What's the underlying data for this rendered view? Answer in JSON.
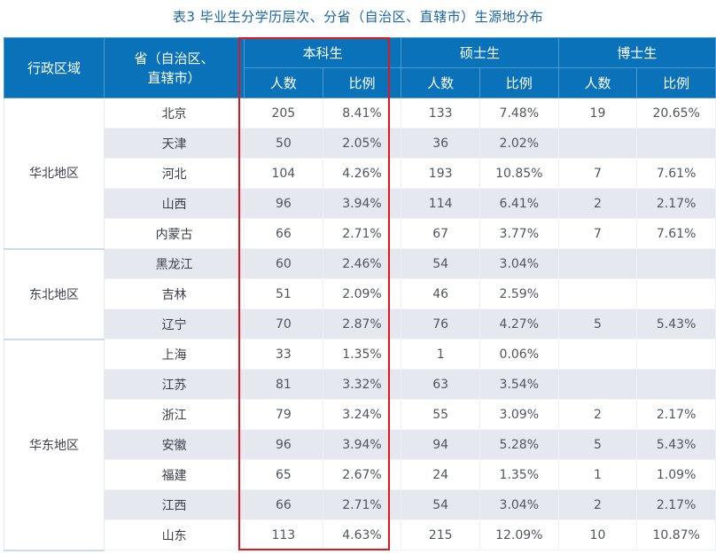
{
  "title": "表3  毕业生分学历层次、分省（自治区、直辖市）生源地分布",
  "header": {
    "region": "行政区域",
    "province": "省（自治区、直辖市）",
    "groups": [
      {
        "label": "本科生",
        "count": "人数",
        "ratio": "比例"
      },
      {
        "label": "硕士生",
        "count": "人数",
        "ratio": "比例"
      },
      {
        "label": "博士生",
        "count": "人数",
        "ratio": "比例"
      }
    ]
  },
  "colors": {
    "header_bg": "#0a72b8",
    "title": "#1a64a8",
    "alt_row": "#e6e8f0",
    "highlight": "#e3161b"
  },
  "regions": [
    {
      "name": "华北地区",
      "rows": [
        {
          "province": "北京",
          "bk_n": "205",
          "bk_p": "8.41%",
          "ss_n": "133",
          "ss_p": "7.48%",
          "bs_n": "19",
          "bs_p": "20.65%"
        },
        {
          "province": "天津",
          "bk_n": "50",
          "bk_p": "2.05%",
          "ss_n": "36",
          "ss_p": "2.02%",
          "bs_n": "",
          "bs_p": ""
        },
        {
          "province": "河北",
          "bk_n": "104",
          "bk_p": "4.26%",
          "ss_n": "193",
          "ss_p": "10.85%",
          "bs_n": "7",
          "bs_p": "7.61%"
        },
        {
          "province": "山西",
          "bk_n": "96",
          "bk_p": "3.94%",
          "ss_n": "114",
          "ss_p": "6.41%",
          "bs_n": "2",
          "bs_p": "2.17%"
        },
        {
          "province": "内蒙古",
          "bk_n": "66",
          "bk_p": "2.71%",
          "ss_n": "67",
          "ss_p": "3.77%",
          "bs_n": "7",
          "bs_p": "7.61%"
        }
      ]
    },
    {
      "name": "东北地区",
      "rows": [
        {
          "province": "黑龙江",
          "bk_n": "60",
          "bk_p": "2.46%",
          "ss_n": "54",
          "ss_p": "3.04%",
          "bs_n": "",
          "bs_p": ""
        },
        {
          "province": "吉林",
          "bk_n": "51",
          "bk_p": "2.09%",
          "ss_n": "46",
          "ss_p": "2.59%",
          "bs_n": "",
          "bs_p": ""
        },
        {
          "province": "辽宁",
          "bk_n": "70",
          "bk_p": "2.87%",
          "ss_n": "76",
          "ss_p": "4.27%",
          "bs_n": "5",
          "bs_p": "5.43%"
        }
      ]
    },
    {
      "name": "华东地区",
      "rows": [
        {
          "province": "上海",
          "bk_n": "33",
          "bk_p": "1.35%",
          "ss_n": "1",
          "ss_p": "0.06%",
          "bs_n": "",
          "bs_p": ""
        },
        {
          "province": "江苏",
          "bk_n": "81",
          "bk_p": "3.32%",
          "ss_n": "63",
          "ss_p": "3.54%",
          "bs_n": "",
          "bs_p": ""
        },
        {
          "province": "浙江",
          "bk_n": "79",
          "bk_p": "3.24%",
          "ss_n": "55",
          "ss_p": "3.09%",
          "bs_n": "2",
          "bs_p": "2.17%"
        },
        {
          "province": "安徽",
          "bk_n": "96",
          "bk_p": "3.94%",
          "ss_n": "94",
          "ss_p": "5.28%",
          "bs_n": "5",
          "bs_p": "5.43%"
        },
        {
          "province": "福建",
          "bk_n": "65",
          "bk_p": "2.67%",
          "ss_n": "24",
          "ss_p": "1.35%",
          "bs_n": "1",
          "bs_p": "1.09%"
        },
        {
          "province": "江西",
          "bk_n": "66",
          "bk_p": "2.71%",
          "ss_n": "54",
          "ss_p": "3.04%",
          "bs_n": "2",
          "bs_p": "2.17%"
        },
        {
          "province": "山东",
          "bk_n": "113",
          "bk_p": "4.63%",
          "ss_n": "215",
          "ss_p": "12.09%",
          "bs_n": "10",
          "bs_p": "10.87%"
        }
      ]
    }
  ]
}
